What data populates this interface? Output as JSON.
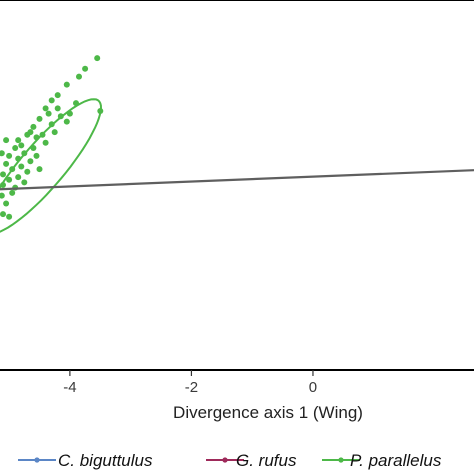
{
  "chart_data": {
    "type": "scatter",
    "title": "",
    "xlabel": "Divergence axis 1 (Wing)",
    "ylabel": "",
    "xlim": [
      -5.15,
      2.65
    ],
    "ylim": [
      -3.5,
      3.5
    ],
    "x_ticks": [
      {
        "value": -4,
        "label": "-4"
      },
      {
        "value": -2,
        "label": "-2"
      },
      {
        "value": 0,
        "label": "0"
      }
    ],
    "grid": false,
    "legend_position": "bottom",
    "series": [
      {
        "name": "C. biguttulus",
        "color": "#5b86c6",
        "points": []
      },
      {
        "name": "G. rufus",
        "color": "#9e2a5a",
        "points": []
      },
      {
        "name": "P. parallelus",
        "color": "#4db848",
        "points": [
          [
            -3.55,
            2.4
          ],
          [
            -3.75,
            2.2
          ],
          [
            -3.85,
            2.05
          ],
          [
            -4.05,
            1.9
          ],
          [
            -3.5,
            1.4
          ],
          [
            -3.9,
            1.55
          ],
          [
            -4.2,
            1.7
          ],
          [
            -4.3,
            1.6
          ],
          [
            -4.4,
            1.45
          ],
          [
            -4.0,
            1.35
          ],
          [
            -4.15,
            1.3
          ],
          [
            -4.5,
            1.25
          ],
          [
            -4.6,
            1.1
          ],
          [
            -4.3,
            1.15
          ],
          [
            -4.05,
            1.2
          ],
          [
            -4.7,
            0.95
          ],
          [
            -4.85,
            0.85
          ],
          [
            -4.55,
            0.9
          ],
          [
            -4.25,
            1.0
          ],
          [
            -4.4,
            0.8
          ],
          [
            -4.9,
            0.7
          ],
          [
            -5.0,
            0.55
          ],
          [
            -4.75,
            0.6
          ],
          [
            -4.6,
            0.7
          ],
          [
            -4.45,
            0.95
          ],
          [
            -5.05,
            0.4
          ],
          [
            -4.95,
            0.3
          ],
          [
            -5.1,
            0.2
          ],
          [
            -4.8,
            0.35
          ],
          [
            -4.65,
            0.45
          ],
          [
            -5.1,
            0.0
          ],
          [
            -5.0,
            0.1
          ],
          [
            -4.9,
            -0.05
          ],
          [
            -5.12,
            -0.2
          ],
          [
            -5.05,
            -0.35
          ],
          [
            -4.85,
            0.15
          ],
          [
            -4.7,
            0.25
          ],
          [
            -4.95,
            -0.15
          ],
          [
            -5.1,
            -0.55
          ],
          [
            -5.0,
            -0.6
          ],
          [
            -5.12,
            0.6
          ],
          [
            -4.55,
            0.55
          ],
          [
            -4.35,
            1.35
          ],
          [
            -4.2,
            1.45
          ],
          [
            -4.8,
            0.75
          ],
          [
            -4.5,
            0.3
          ],
          [
            -4.75,
            0.05
          ],
          [
            -5.05,
            0.85
          ],
          [
            -4.65,
            1.0
          ],
          [
            -4.85,
            0.5
          ]
        ]
      }
    ],
    "ellipse": {
      "series": "P. parallelus",
      "center": [
        -4.45,
        0.35
      ],
      "semi_axes": [
        1.55,
        0.38
      ],
      "angle_deg": 54
    },
    "regression_line": {
      "color": "#5f5f5f",
      "from": [
        -5.15,
        -0.08
      ],
      "to": [
        2.65,
        0.28
      ]
    }
  }
}
